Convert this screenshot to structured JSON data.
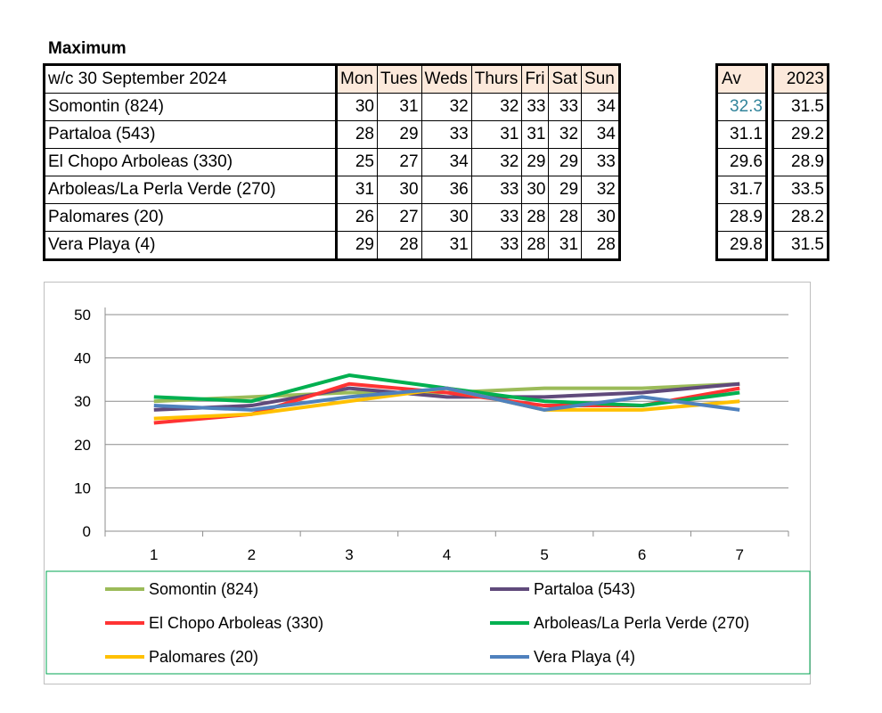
{
  "table": {
    "title": "Maximum",
    "header_label": "w/c  30 September 2024",
    "days": [
      "Mon",
      "Tues",
      "Weds",
      "Thurs",
      "Fri",
      "Sat",
      "Sun"
    ],
    "av_label": "Av",
    "year_label": "2023",
    "rows": [
      {
        "station": "Somontin (824)",
        "values": [
          "30",
          "31",
          "32",
          "32",
          "33",
          "33",
          "34"
        ],
        "av": "32.3",
        "prev": "31.5"
      },
      {
        "station": "Partaloa (543)",
        "values": [
          "28",
          "29",
          "33",
          "31",
          "31",
          "32",
          "34"
        ],
        "av": "31.1",
        "prev": "29.2"
      },
      {
        "station": "El Chopo  Arboleas (330)",
        "values": [
          "25",
          "27",
          "34",
          "32",
          "29",
          "29",
          "33"
        ],
        "av": "29.6",
        "prev": "28.9"
      },
      {
        "station": "Arboleas/La Perla Verde (270)",
        "values": [
          "31",
          "30",
          "36",
          "33",
          "30",
          "29",
          "32"
        ],
        "av": "31.7",
        "prev": "33.5"
      },
      {
        "station": "Palomares (20)",
        "values": [
          "26",
          "27",
          "30",
          "33",
          "28",
          "28",
          "30"
        ],
        "av": "28.9",
        "prev": "28.2"
      },
      {
        "station": "Vera Playa (4)",
        "values": [
          "29",
          "28",
          "31",
          "33",
          "28",
          "31",
          "28"
        ],
        "av": "29.8",
        "prev": "31.5"
      }
    ]
  },
  "chart_data": {
    "type": "line",
    "categories": [
      "1",
      "2",
      "3",
      "4",
      "5",
      "6",
      "7"
    ],
    "yticks": [
      "0",
      "10",
      "20",
      "30",
      "40",
      "50"
    ],
    "ylim": [
      0,
      50
    ],
    "grid": true,
    "legend_position": "bottom",
    "series": [
      {
        "name": "Somontin (824)",
        "color": "#9bbb59",
        "values": [
          30,
          31,
          32,
          32,
          33,
          33,
          34
        ]
      },
      {
        "name": "Partaloa (543)",
        "color": "#604a7b",
        "values": [
          28,
          29,
          33,
          31,
          31,
          32,
          34
        ]
      },
      {
        "name": "El Chopo  Arboleas (330)",
        "color": "#ff3333",
        "values": [
          25,
          27,
          34,
          32,
          29,
          29,
          33
        ]
      },
      {
        "name": "Arboleas/La Perla Verde (270)",
        "color": "#00b050",
        "values": [
          31,
          30,
          36,
          33,
          30,
          29,
          32
        ]
      },
      {
        "name": "Palomares (20)",
        "color": "#ffc000",
        "values": [
          26,
          27,
          30,
          33,
          28,
          28,
          30
        ]
      },
      {
        "name": "Vera Playa (4)",
        "color": "#4f81bd",
        "values": [
          29,
          28,
          31,
          33,
          28,
          31,
          28
        ]
      }
    ]
  }
}
